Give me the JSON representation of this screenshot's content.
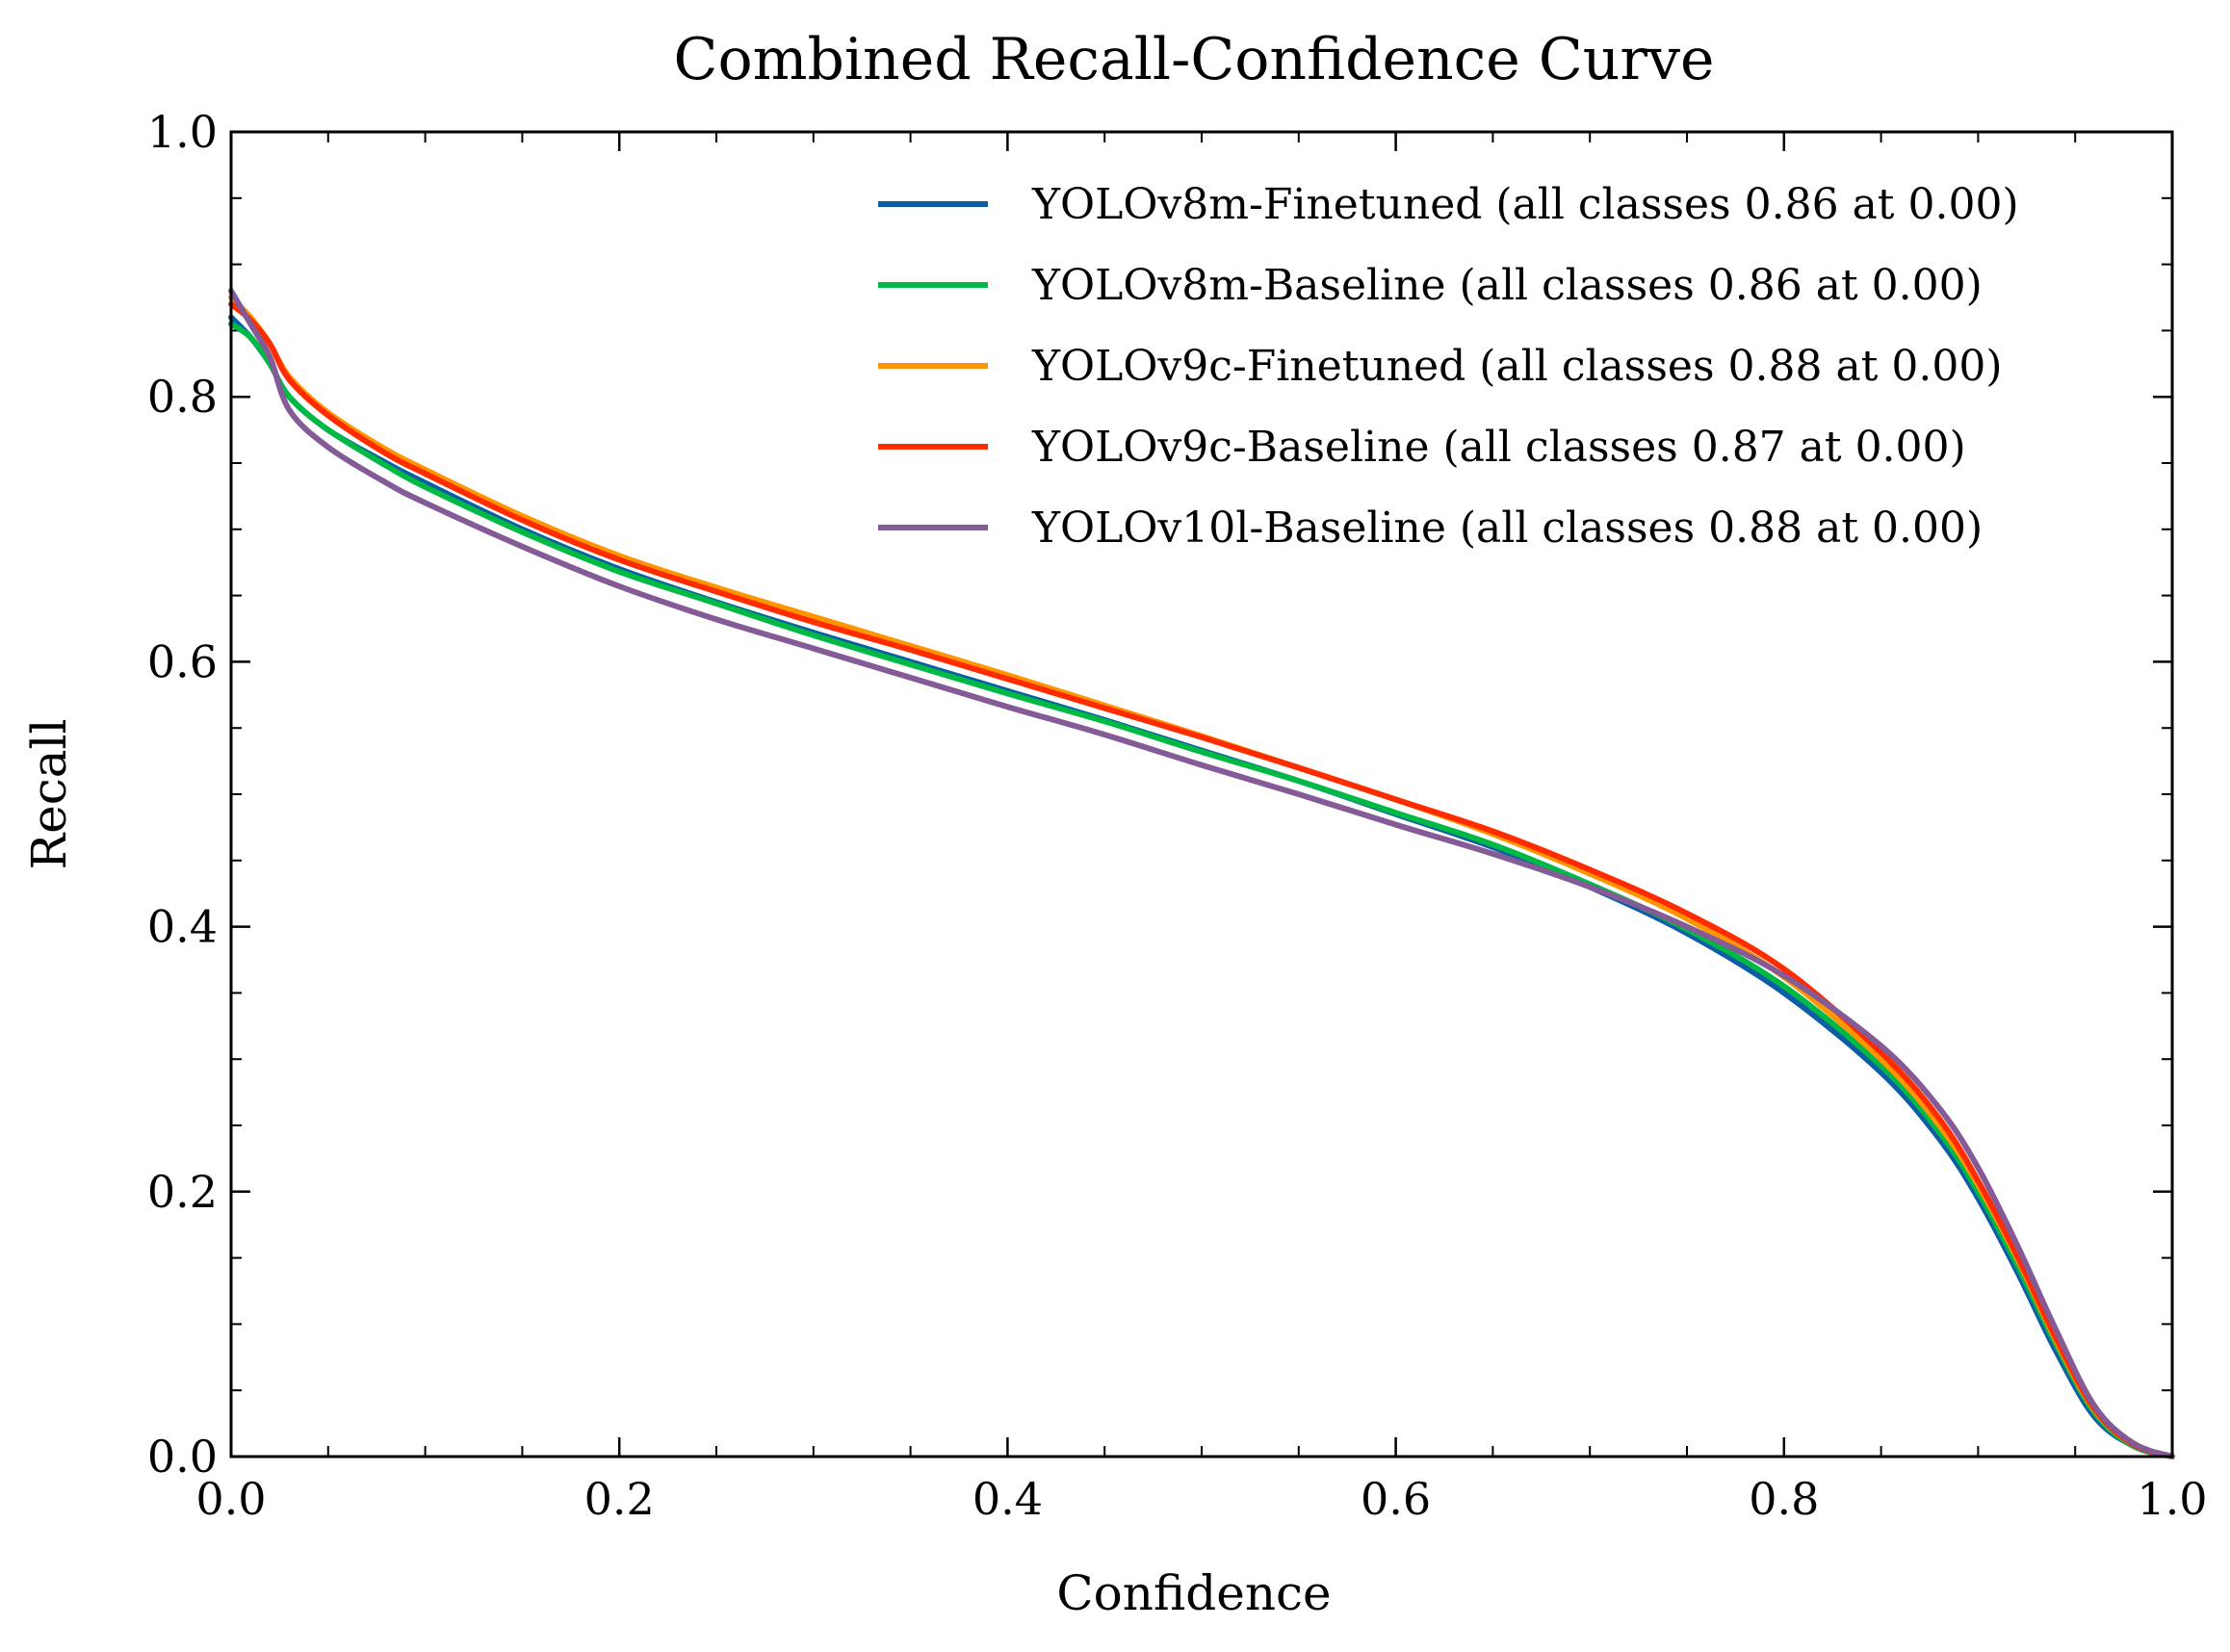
{
  "chart_data": {
    "type": "line",
    "title": "Combined Recall-Confidence Curve",
    "xlabel": "Confidence",
    "ylabel": "Recall",
    "xlim": [
      0.0,
      1.0
    ],
    "ylim": [
      0.0,
      1.0
    ],
    "xticks": [
      "0.0",
      "0.2",
      "0.4",
      "0.6",
      "0.8",
      "1.0"
    ],
    "yticks": [
      "0.0",
      "0.2",
      "0.4",
      "0.6",
      "0.8",
      "1.0"
    ],
    "grid": false,
    "legend_position": "top-right",
    "series": [
      {
        "name": "YOLOv8m-Finetuned (all classes 0.86 at 0.00)",
        "color": "#0C5DA5",
        "x": [
          0,
          0.01,
          0.02,
          0.03,
          0.05,
          0.08,
          0.1,
          0.15,
          0.2,
          0.25,
          0.3,
          0.35,
          0.4,
          0.45,
          0.5,
          0.55,
          0.6,
          0.65,
          0.7,
          0.75,
          0.8,
          0.85,
          0.88,
          0.9,
          0.92,
          0.94,
          0.96,
          0.98,
          1.0
        ],
        "y": [
          0.86,
          0.845,
          0.825,
          0.8,
          0.775,
          0.75,
          0.735,
          0.7,
          0.67,
          0.645,
          0.622,
          0.6,
          0.578,
          0.556,
          0.533,
          0.51,
          0.485,
          0.46,
          0.43,
          0.395,
          0.35,
          0.29,
          0.24,
          0.195,
          0.14,
          0.08,
          0.03,
          0.008,
          0.0
        ]
      },
      {
        "name": "YOLOv8m-Baseline (all classes 0.86 at 0.00)",
        "color": "#00B945",
        "x": [
          0,
          0.01,
          0.02,
          0.03,
          0.05,
          0.08,
          0.1,
          0.15,
          0.2,
          0.25,
          0.3,
          0.35,
          0.4,
          0.45,
          0.5,
          0.55,
          0.6,
          0.65,
          0.7,
          0.75,
          0.8,
          0.85,
          0.88,
          0.9,
          0.92,
          0.94,
          0.96,
          0.98,
          1.0
        ],
        "y": [
          0.855,
          0.845,
          0.825,
          0.8,
          0.775,
          0.748,
          0.732,
          0.698,
          0.668,
          0.644,
          0.62,
          0.598,
          0.576,
          0.555,
          0.532,
          0.51,
          0.486,
          0.462,
          0.432,
          0.398,
          0.355,
          0.295,
          0.245,
          0.2,
          0.145,
          0.085,
          0.033,
          0.008,
          0.0
        ]
      },
      {
        "name": "YOLOv9c-Finetuned (all classes 0.88 at 0.00)",
        "color": "#FF9500",
        "x": [
          0,
          0.01,
          0.02,
          0.03,
          0.05,
          0.08,
          0.1,
          0.15,
          0.2,
          0.25,
          0.3,
          0.35,
          0.4,
          0.45,
          0.5,
          0.55,
          0.6,
          0.65,
          0.7,
          0.75,
          0.8,
          0.85,
          0.88,
          0.9,
          0.92,
          0.94,
          0.96,
          0.98,
          1.0
        ],
        "y": [
          0.875,
          0.86,
          0.84,
          0.815,
          0.788,
          0.76,
          0.745,
          0.71,
          0.68,
          0.656,
          0.634,
          0.612,
          0.59,
          0.567,
          0.544,
          0.52,
          0.496,
          0.47,
          0.44,
          0.406,
          0.362,
          0.3,
          0.25,
          0.205,
          0.15,
          0.088,
          0.035,
          0.009,
          0.0
        ]
      },
      {
        "name": "YOLOv9c-Baseline (all classes 0.87 at 0.00)",
        "color": "#FF2C00",
        "x": [
          0,
          0.01,
          0.02,
          0.03,
          0.05,
          0.08,
          0.1,
          0.15,
          0.2,
          0.25,
          0.3,
          0.35,
          0.4,
          0.45,
          0.5,
          0.55,
          0.6,
          0.65,
          0.7,
          0.75,
          0.8,
          0.85,
          0.88,
          0.9,
          0.92,
          0.94,
          0.96,
          0.98,
          1.0
        ],
        "y": [
          0.87,
          0.858,
          0.84,
          0.813,
          0.786,
          0.757,
          0.742,
          0.707,
          0.677,
          0.653,
          0.63,
          0.609,
          0.587,
          0.565,
          0.543,
          0.52,
          0.496,
          0.472,
          0.443,
          0.41,
          0.368,
          0.305,
          0.255,
          0.208,
          0.152,
          0.09,
          0.036,
          0.009,
          0.0
        ]
      },
      {
        "name": "YOLOv10l-Baseline (all classes 0.88 at 0.00)",
        "color": "#845B97",
        "x": [
          0,
          0.01,
          0.02,
          0.03,
          0.05,
          0.08,
          0.1,
          0.15,
          0.2,
          0.25,
          0.3,
          0.35,
          0.4,
          0.45,
          0.5,
          0.55,
          0.6,
          0.65,
          0.7,
          0.75,
          0.8,
          0.85,
          0.88,
          0.9,
          0.92,
          0.94,
          0.96,
          0.98,
          1.0
        ],
        "y": [
          0.88,
          0.855,
          0.83,
          0.79,
          0.762,
          0.735,
          0.72,
          0.687,
          0.657,
          0.632,
          0.61,
          0.588,
          0.566,
          0.545,
          0.522,
          0.5,
          0.477,
          0.455,
          0.43,
          0.4,
          0.363,
          0.31,
          0.263,
          0.218,
          0.16,
          0.096,
          0.038,
          0.01,
          0.0
        ]
      }
    ]
  }
}
